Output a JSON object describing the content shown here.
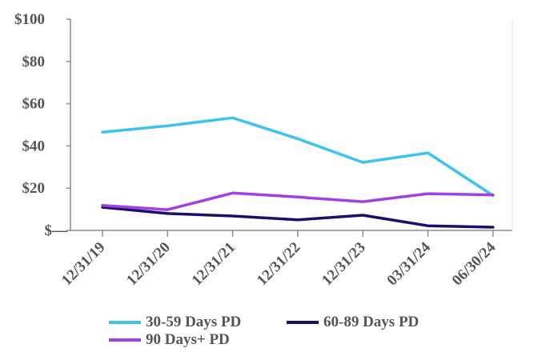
{
  "chart_data": {
    "type": "line",
    "title": "",
    "xlabel": "",
    "ylabel": "",
    "categories": [
      "12/31/19",
      "12/31/20",
      "12/31/21",
      "12/31/22",
      "12/31/23",
      "03/31/24",
      "06/30/24"
    ],
    "ylim": [
      0,
      100
    ],
    "yticks": [
      0,
      20,
      40,
      60,
      80,
      100
    ],
    "ytick_labels": [
      "$—",
      "$20",
      "$40",
      "$60",
      "$80",
      "$100"
    ],
    "grid": false,
    "legend_position": "bottom",
    "series": [
      {
        "name": "30-59 Days PD",
        "color": "#3cc3f0",
        "values": [
          46.5,
          49.5,
          53.3,
          43.4,
          32.2,
          36.7,
          16.5
        ]
      },
      {
        "name": "60-89 Days PD",
        "color": "#1b0f6e",
        "values": [
          11.0,
          8.0,
          6.8,
          5.0,
          7.2,
          2.2,
          1.5
        ]
      },
      {
        "name": "90 Days+ PD",
        "color": "#a23fe6",
        "values": [
          11.8,
          9.8,
          17.7,
          15.8,
          13.6,
          17.4,
          16.8
        ]
      }
    ]
  }
}
